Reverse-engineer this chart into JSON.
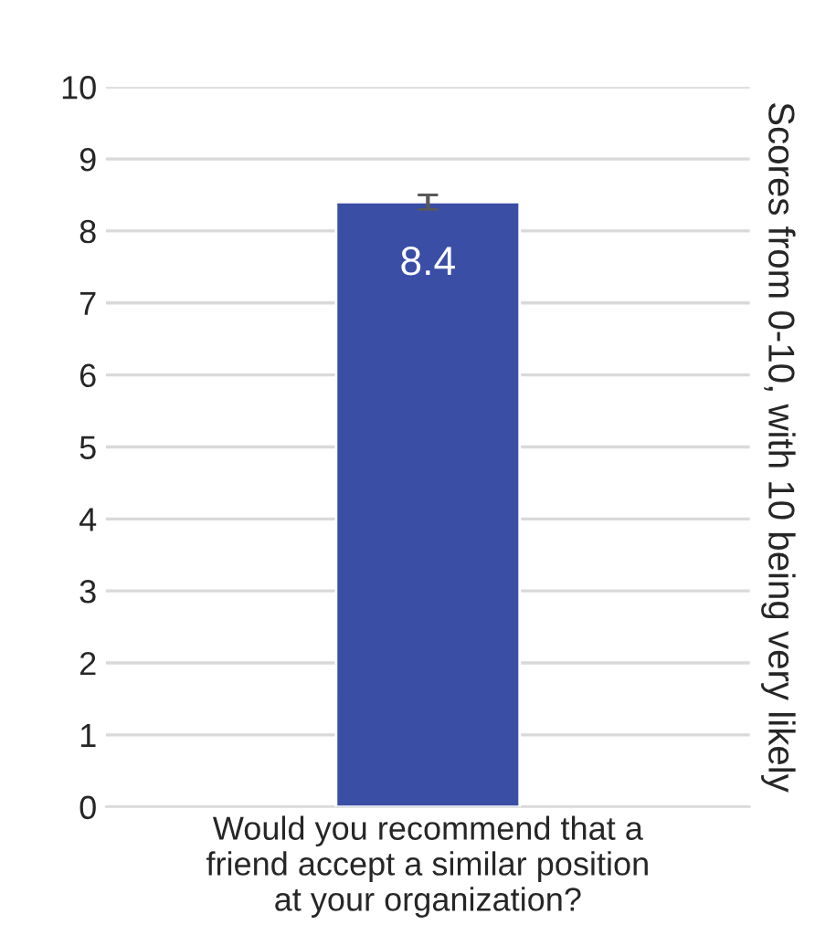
{
  "chart_data": {
    "type": "bar",
    "categories": [
      "Would you recommend that a\nfriend accept a similar position\nat your organization?"
    ],
    "values": [
      8.4
    ],
    "errors": [
      0.1
    ],
    "color": "#3a4ea6",
    "data_labels": true,
    "ylabel": "Scores from 0-10, with 10 being very likely",
    "ylim": [
      0,
      10
    ],
    "yticks": [
      0,
      1,
      2,
      3,
      4,
      5,
      6,
      7,
      8,
      9,
      10
    ],
    "grid": "y"
  }
}
